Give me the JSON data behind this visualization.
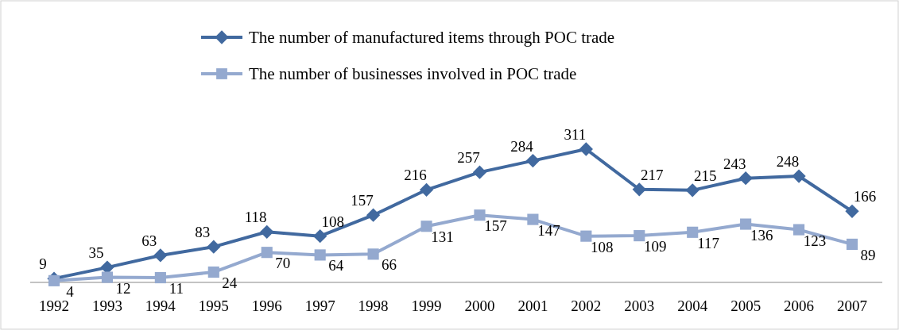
{
  "chart_data": {
    "type": "line",
    "categories": [
      "1992",
      "1993",
      "1994",
      "1995",
      "1996",
      "1997",
      "1998",
      "1999",
      "2000",
      "2001",
      "2002",
      "2003",
      "2004",
      "2005",
      "2006",
      "2007"
    ],
    "series": [
      {
        "name": "The number of manufactured items through POC trade",
        "color": "#41699f",
        "marker": "diamond",
        "values": [
          9,
          35,
          63,
          83,
          118,
          108,
          157,
          216,
          257,
          284,
          311,
          217,
          215,
          243,
          248,
          166
        ]
      },
      {
        "name": "The number of businesses involved in POC trade",
        "color": "#94a9cf",
        "marker": "square",
        "values": [
          4,
          12,
          11,
          24,
          70,
          64,
          66,
          131,
          157,
          147,
          108,
          109,
          117,
          136,
          123,
          89
        ]
      }
    ],
    "data_labels": true,
    "legend": "top"
  }
}
